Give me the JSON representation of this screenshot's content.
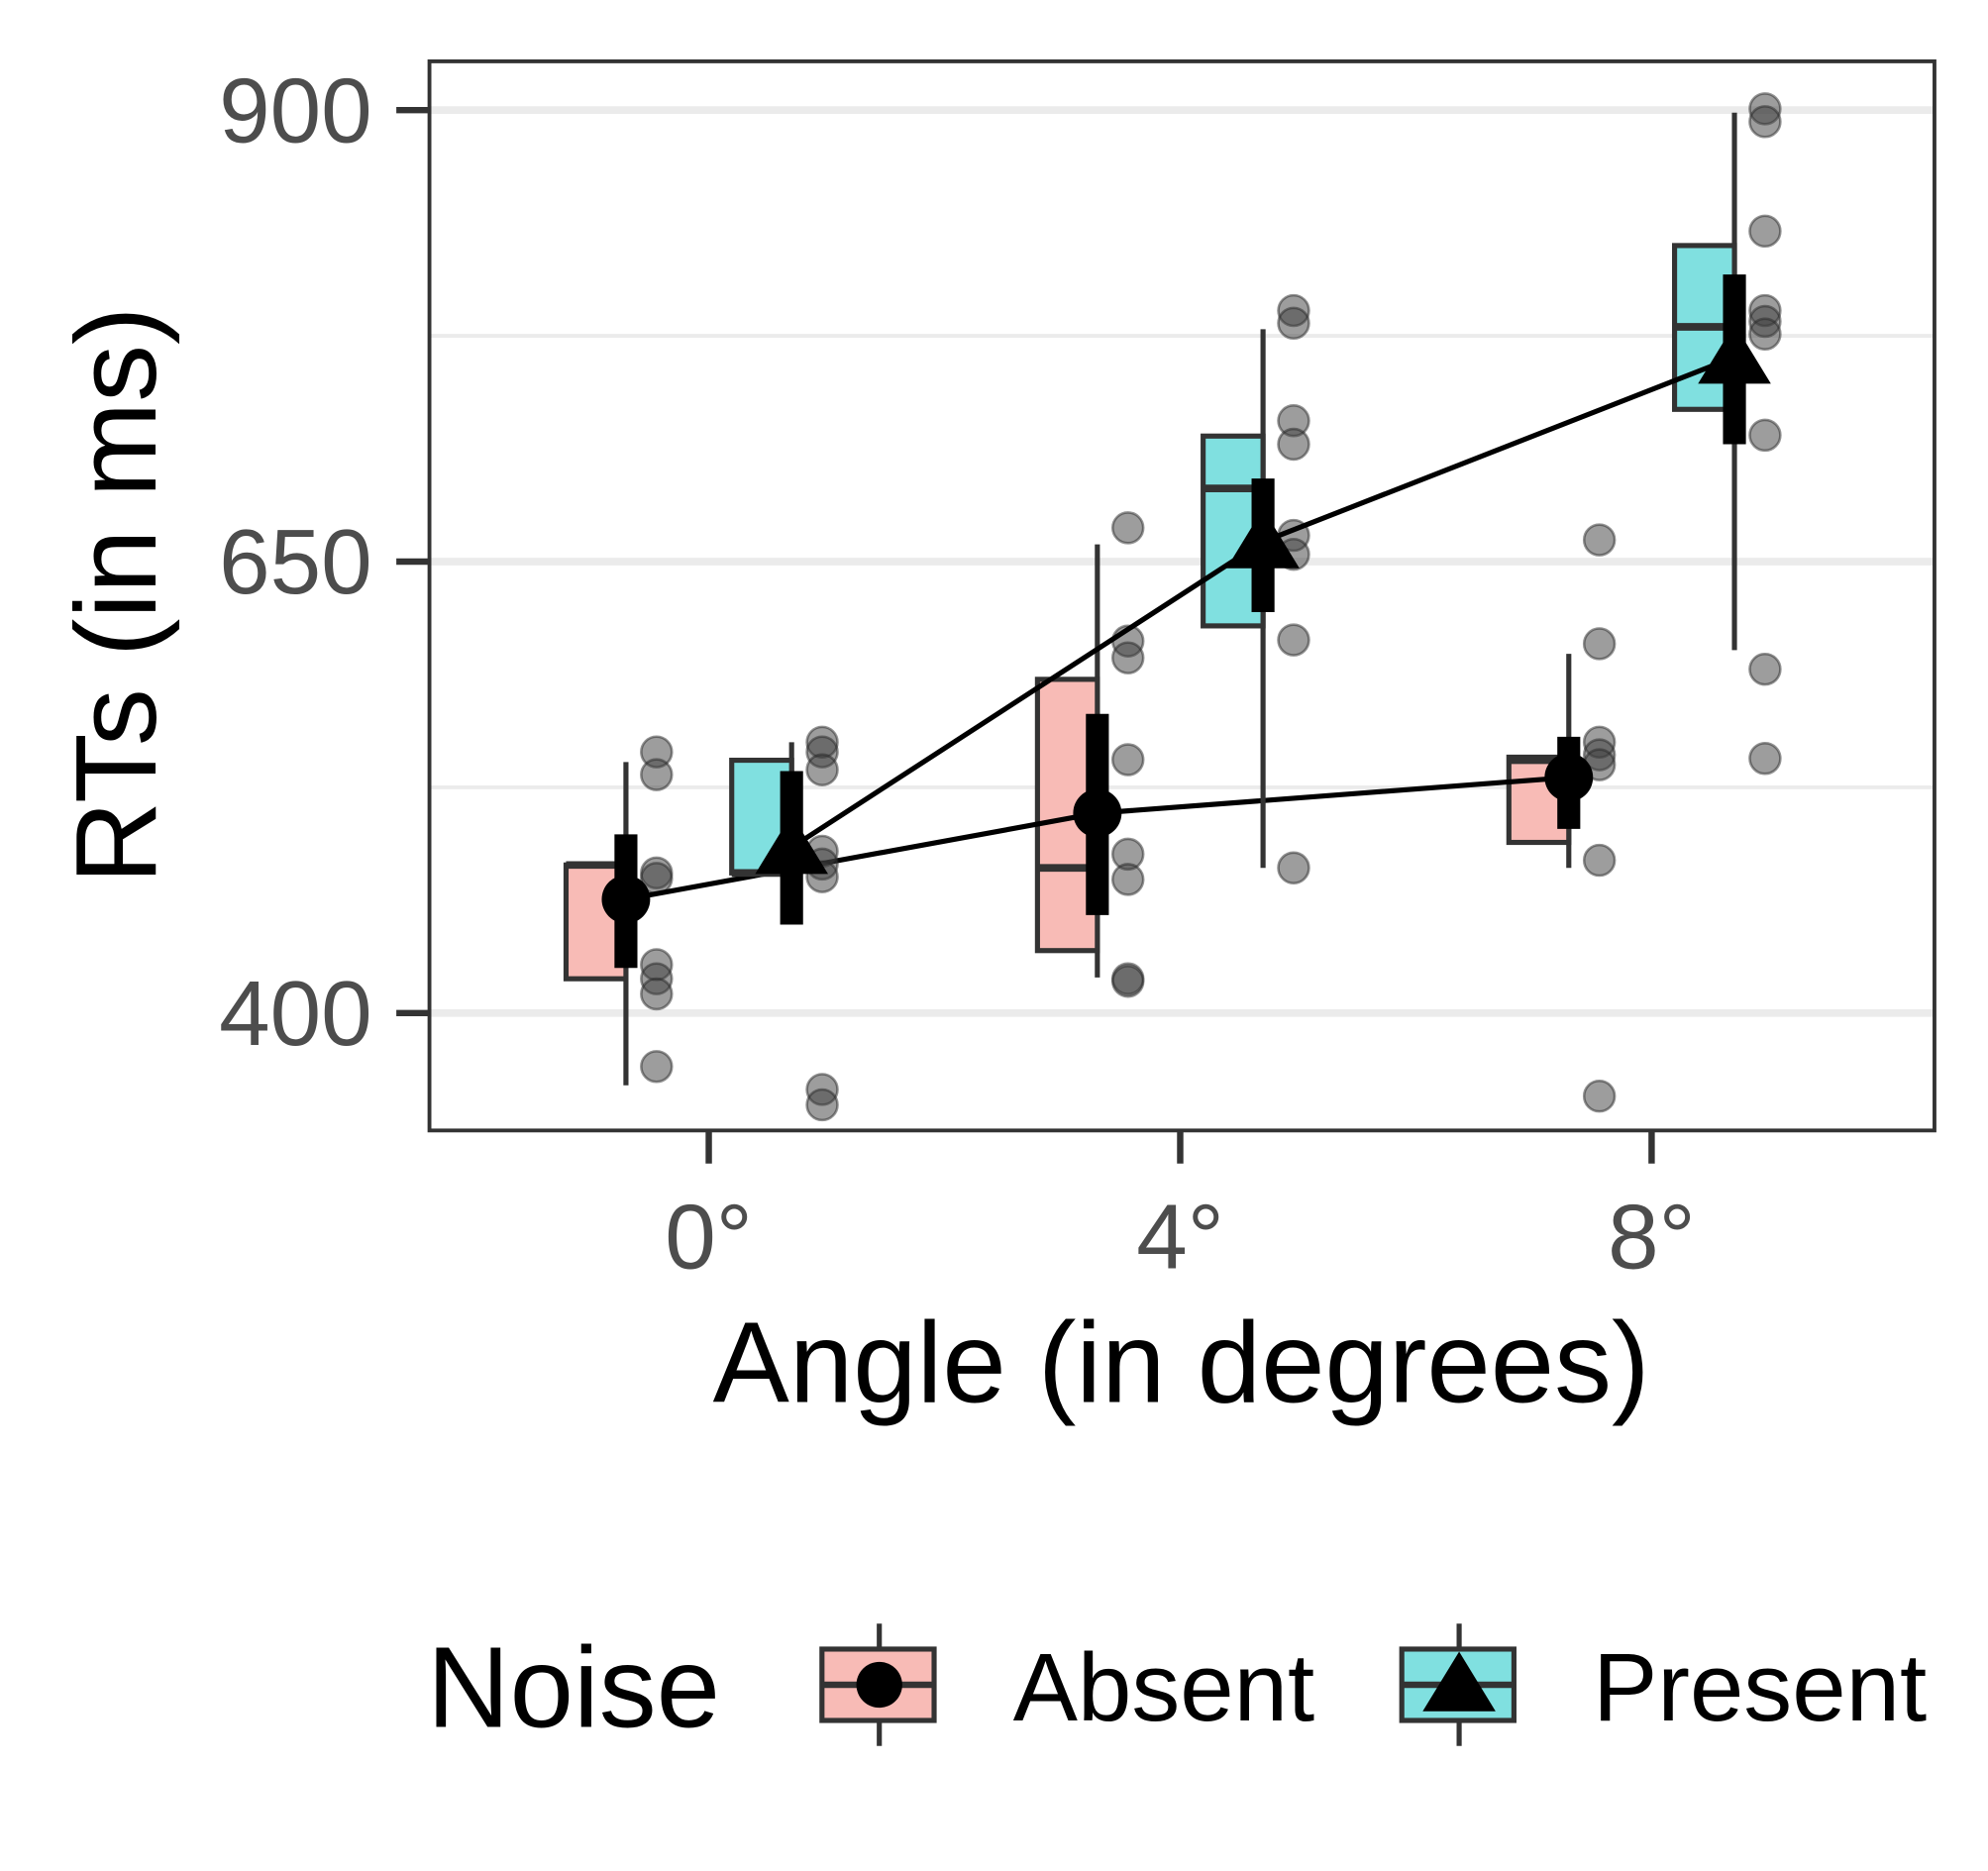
{
  "chart_data": {
    "type": "box",
    "title": "",
    "xlabel": "Angle (in degrees)",
    "ylabel": "RTs (in ms)",
    "ylim": [
      335,
      927
    ],
    "xlim": [
      -2.37,
      10.4
    ],
    "x_ticks": [
      0,
      4,
      8
    ],
    "x_tick_labels": [
      "0°",
      "4°",
      "8°"
    ],
    "y_ticks": [
      400,
      650,
      900
    ],
    "y_tick_labels": [
      "400",
      "650",
      "900"
    ],
    "y_minor_gridlines": [
      525,
      775
    ],
    "grid": true,
    "legend": {
      "title": "Noise",
      "position": "bottom",
      "entries": [
        "Absent",
        "Present"
      ]
    },
    "colors": {
      "Absent": "#F8BBB6",
      "Present": "#80E0E0",
      "points": "#555555",
      "mean": "#000000"
    },
    "series": [
      {
        "name": "Absent",
        "marker": "circle",
        "groups": [
          {
            "angle": 0,
            "box": {
              "q1": 419,
              "median": 482,
              "q3": 482,
              "whisker_low": 360,
              "whisker_high": 539
            },
            "mean": 463,
            "ci": [
              425,
              499
            ],
            "points": [
              544.6,
              532,
              477.6,
              474.6,
              426.8,
              419,
              410.6,
              370.4
            ]
          },
          {
            "angle": 4,
            "box": {
              "q1": 434.6,
              "median": 480.4,
              "q3": 584.8,
              "whisker_low": 419.7,
              "whisker_high": 659.5
            },
            "mean": 510.7,
            "ci": [
              454.3,
              565.7
            ],
            "points": [
              668.7,
              606,
              596.7,
              540.3,
              488,
              474,
              419,
              417.6
            ]
          },
          {
            "angle": 8,
            "box": {
              "q1": 494.5,
              "median": 540,
              "q3": 541.7,
              "whisker_low": 480.4,
              "whisker_high": 598.9
            },
            "mean": 530.5,
            "ci": [
              502,
              553
            ],
            "points": [
              662,
              604.5,
              550,
              543,
              537.5,
              484.6,
              354
            ]
          }
        ]
      },
      {
        "name": "Present",
        "marker": "triangle",
        "groups": [
          {
            "angle": 0,
            "box": {
              "q1": 477.6,
              "median": 477.6,
              "q3": 540,
              "whisker_low": 475.5,
              "whisker_high": 550
            },
            "mean": 491.7,
            "ci": [
              449,
              534
            ],
            "points": [
              550,
              544.6,
              534.7,
              489.6,
              482.5,
              475.5,
              357.7,
              349.2
            ]
          },
          {
            "angle": 4,
            "box": {
              "q1": 614.4,
              "median": 690.5,
              "q3": 719.5,
              "whisker_low": 480.4,
              "whisker_high": 778.7
            },
            "mean": 661,
            "ci": [
              622,
              696
            ],
            "points": [
              789,
              782,
              728,
              715,
              664.5,
              654,
              606.6,
              480.4
            ]
          },
          {
            "angle": 8,
            "box": {
              "q1": 734.3,
              "median": 780,
              "q3": 825,
              "whisker_low": 601,
              "whisker_high": 898.6
            },
            "mean": 763.2,
            "ci": [
              715,
              809
            ],
            "points": [
              900.7,
              893.6,
              833,
              789,
              783,
              776,
              720,
              590.4,
              541
            ]
          }
        ]
      }
    ]
  }
}
